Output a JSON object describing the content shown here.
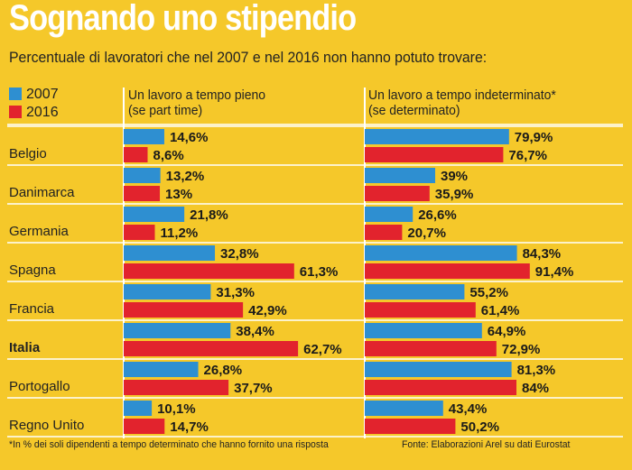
{
  "title": "Sognando uno stipendio",
  "subtitle": "Percentuale di lavoratori che nel 2007 e nel 2016 non hanno potuto trovare:",
  "legend": [
    {
      "label": "2007",
      "color": "#2e8fd1"
    },
    {
      "label": "2016",
      "color": "#e2232d"
    }
  ],
  "columns": [
    {
      "line1": "Un lavoro a tempo pieno",
      "line2": "(se part time)"
    },
    {
      "line1": "Un lavoro a tempo indeterminato*",
      "line2": "(se determinato)"
    }
  ],
  "footnote": "*In % dei soli dipendenti a tempo determinato che hanno fornito una risposta",
  "source": "Fonte: Elaborazioni Arel su dati Eurostat",
  "colors": {
    "background": "#f5c82a",
    "series_2007": "#2e8fd1",
    "series_2016": "#e2232d",
    "rule": "#ffffff"
  },
  "chart_data": [
    {
      "type": "bar",
      "orientation": "horizontal",
      "title": "Un lavoro a tempo pieno (se part time)",
      "categories": [
        "Belgio",
        "Danimarca",
        "Germania",
        "Spagna",
        "Francia",
        "Italia",
        "Portogallo",
        "Regno Unito"
      ],
      "series": [
        {
          "name": "2007",
          "values": [
            14.6,
            13.2,
            21.8,
            32.8,
            31.3,
            38.4,
            26.8,
            10.1
          ],
          "labels": [
            "14,6%",
            "13,2%",
            "21,8%",
            "32,8%",
            "31,3%",
            "38,4%",
            "26,8%",
            "10,1%"
          ]
        },
        {
          "name": "2016",
          "values": [
            8.6,
            13,
            11.2,
            61.3,
            42.9,
            62.7,
            37.7,
            14.7
          ],
          "labels": [
            "8,6%",
            "13%",
            "11,2%",
            "61,3%",
            "42,9%",
            "62,7%",
            "37,7%",
            "14,7%"
          ]
        }
      ],
      "xlim": [
        0,
        100
      ]
    },
    {
      "type": "bar",
      "orientation": "horizontal",
      "title": "Un lavoro a tempo indeterminato* (se determinato)",
      "categories": [
        "Belgio",
        "Danimarca",
        "Germania",
        "Spagna",
        "Francia",
        "Italia",
        "Portogallo",
        "Regno Unito"
      ],
      "series": [
        {
          "name": "2007",
          "values": [
            79.9,
            39,
            26.6,
            84.3,
            55.2,
            64.9,
            81.3,
            43.4
          ],
          "labels": [
            "79,9%",
            "39%",
            "26,6%",
            "84,3%",
            "55,2%",
            "64,9%",
            "81,3%",
            "43,4%"
          ]
        },
        {
          "name": "2016",
          "values": [
            76.7,
            35.9,
            20.7,
            91.4,
            61.4,
            72.9,
            84,
            50.2
          ],
          "labels": [
            "76,7%",
            "35,9%",
            "20,7%",
            "91,4%",
            "61,4%",
            "72,9%",
            "84%",
            "50,2%"
          ]
        }
      ],
      "xlim": [
        0,
        100
      ]
    }
  ],
  "highlight_category": "Italia"
}
